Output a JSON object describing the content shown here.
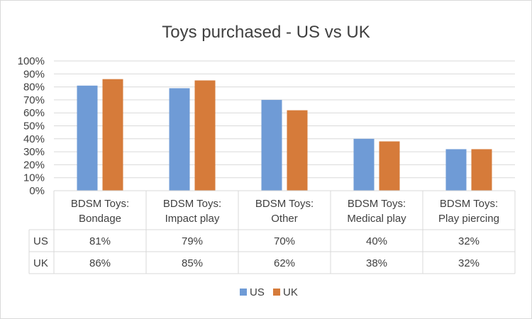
{
  "chart_data": {
    "type": "bar",
    "title": "Toys purchased - US vs UK",
    "categories": [
      [
        "BDSM Toys:",
        "Bondage"
      ],
      [
        "BDSM Toys:",
        "Impact play"
      ],
      [
        "BDSM Toys:",
        "Other"
      ],
      [
        "BDSM Toys:",
        "Medical play"
      ],
      [
        "BDSM Toys:",
        "Play piercing"
      ]
    ],
    "series": [
      {
        "name": "US",
        "color": "#6f9bd6",
        "values": [
          81,
          79,
          70,
          40,
          32
        ],
        "labels": [
          "81%",
          "79%",
          "70%",
          "40%",
          "32%"
        ]
      },
      {
        "name": "UK",
        "color": "#d67b3a",
        "values": [
          86,
          85,
          62,
          38,
          32
        ],
        "labels": [
          "86%",
          "85%",
          "62%",
          "38%",
          "32%"
        ]
      }
    ],
    "ylim": [
      0,
      100
    ],
    "yticks": [
      0,
      10,
      20,
      30,
      40,
      50,
      60,
      70,
      80,
      90,
      100
    ],
    "ytick_labels": [
      "0%",
      "10%",
      "20%",
      "30%",
      "40%",
      "50%",
      "60%",
      "70%",
      "80%",
      "90%",
      "100%"
    ],
    "xlabel": "",
    "ylabel": "",
    "grid": true,
    "legend_position": "bottom-center",
    "has_data_table": true
  }
}
